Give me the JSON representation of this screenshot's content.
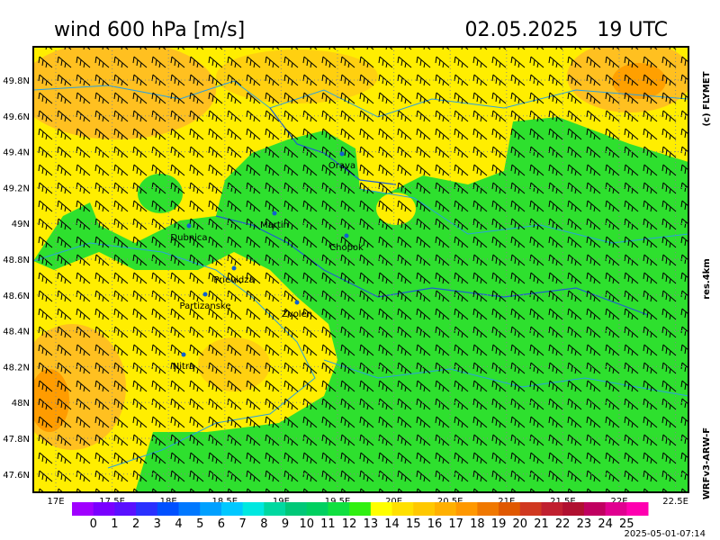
{
  "header": {
    "title": "wind 600 hPa [m/s]",
    "date": "02.05.2025   19 UTC"
  },
  "side": {
    "credit": "(c) FLYMET",
    "resolution": "res.4km",
    "model": "WRFv3-ARW-F"
  },
  "footer": {
    "timestamp": "2025-05-01-07:14"
  },
  "map": {
    "lat_labels": [
      "49.8N",
      "49.6N",
      "49.4N",
      "49.2N",
      "49N",
      "48.8N",
      "48.6N",
      "48.4N",
      "48.2N",
      "48N",
      "47.8N",
      "47.6N"
    ],
    "lon_labels": [
      "17E",
      "17.5E",
      "18E",
      "18.5E",
      "19E",
      "19.5E",
      "20E",
      "20.5E",
      "21E",
      "21.5E",
      "22E",
      "22.5E"
    ],
    "cities": [
      "Orava",
      "Martin",
      "Dubnica",
      "Chopok",
      "Prievidza",
      "Partizanske",
      "Zvolen",
      "Nitra"
    ]
  },
  "colorbar": {
    "ticks": [
      0,
      1,
      2,
      3,
      4,
      5,
      6,
      7,
      8,
      9,
      10,
      11,
      12,
      13,
      14,
      15,
      16,
      17,
      18,
      19,
      20,
      21,
      22,
      23,
      24,
      25
    ],
    "colors": [
      "#a000ff",
      "#7a00ff",
      "#5a10ff",
      "#2a30ff",
      "#0050ff",
      "#0078ff",
      "#00a0ff",
      "#00c8ff",
      "#00e8e0",
      "#00d8a0",
      "#00c878",
      "#00d060",
      "#10e040",
      "#30f010",
      "#ffff00",
      "#ffe000",
      "#ffc800",
      "#ffb000",
      "#ff9800",
      "#f07800",
      "#e05800",
      "#d03820",
      "#c02030",
      "#b01030",
      "#c00060",
      "#e00090",
      "#ff00b0"
    ]
  }
}
